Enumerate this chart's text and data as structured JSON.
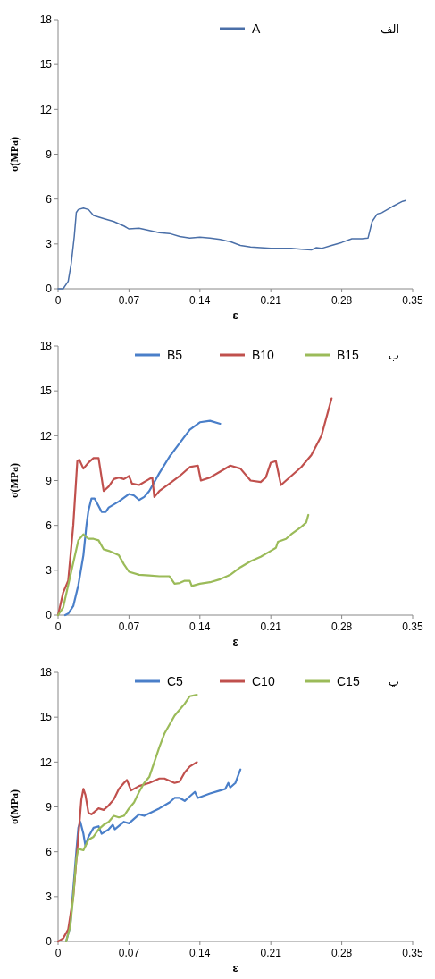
{
  "chart_data": [
    {
      "type": "line",
      "xlabel": "ε",
      "ylabel": "σ(MPa)",
      "annotations": [
        "الف"
      ],
      "xlim": [
        0,
        0.35
      ],
      "ylim": [
        0,
        18
      ],
      "xticks": [
        0,
        0.07,
        0.14,
        0.21,
        0.28,
        0.35
      ],
      "yticks": [
        0,
        3,
        6,
        9,
        12,
        15,
        18
      ],
      "grid": false,
      "legend": "top",
      "marker": "none",
      "line_style": "solid",
      "series": [
        {
          "name": "A",
          "color": "#4a6fa8",
          "x": [
            0,
            0.005,
            0.01,
            0.013,
            0.016,
            0.018,
            0.02,
            0.025,
            0.03,
            0.035,
            0.045,
            0.055,
            0.065,
            0.07,
            0.08,
            0.09,
            0.1,
            0.11,
            0.12,
            0.13,
            0.14,
            0.15,
            0.16,
            0.17,
            0.18,
            0.19,
            0.2,
            0.21,
            0.22,
            0.23,
            0.24,
            0.25,
            0.255,
            0.26,
            0.27,
            0.28,
            0.29,
            0.3,
            0.306,
            0.31,
            0.315,
            0.32,
            0.33,
            0.34,
            0.343
          ],
          "values": [
            0,
            0,
            0.5,
            1.7,
            3.5,
            5.1,
            5.3,
            5.4,
            5.3,
            4.9,
            4.7,
            4.5,
            4.2,
            4.0,
            4.05,
            3.9,
            3.75,
            3.7,
            3.5,
            3.4,
            3.45,
            3.4,
            3.3,
            3.15,
            2.9,
            2.8,
            2.75,
            2.7,
            2.7,
            2.7,
            2.65,
            2.6,
            2.75,
            2.7,
            2.9,
            3.1,
            3.35,
            3.35,
            3.4,
            4.5,
            5.0,
            5.1,
            5.5,
            5.85,
            5.9
          ]
        }
      ]
    },
    {
      "type": "line",
      "xlabel": "ε",
      "ylabel": "σ(MPa)",
      "annotations": [
        "ب"
      ],
      "xlim": [
        0,
        0.35
      ],
      "ylim": [
        0,
        18
      ],
      "xticks": [
        0,
        0.07,
        0.14,
        0.21,
        0.28,
        0.35
      ],
      "yticks": [
        0,
        3,
        6,
        9,
        12,
        15,
        18
      ],
      "grid": false,
      "legend": "top",
      "marker": "none",
      "line_style": "solid",
      "series": [
        {
          "name": "B5",
          "color": "#4a7fc9",
          "x": [
            0.007,
            0.01,
            0.015,
            0.02,
            0.025,
            0.028,
            0.03,
            0.033,
            0.036,
            0.04,
            0.043,
            0.047,
            0.05,
            0.06,
            0.07,
            0.075,
            0.08,
            0.085,
            0.09,
            0.1,
            0.11,
            0.12,
            0.13,
            0.14,
            0.15,
            0.16
          ],
          "values": [
            0,
            0.1,
            0.6,
            2,
            4,
            6,
            7,
            7.8,
            7.8,
            7.3,
            6.9,
            6.9,
            7.2,
            7.6,
            8.1,
            8.0,
            7.7,
            7.9,
            8.3,
            9.5,
            10.6,
            11.5,
            12.4,
            12.9,
            13.0,
            12.8
          ]
        },
        {
          "name": "B10",
          "color": "#c0504d",
          "x": [
            0,
            0.005,
            0.01,
            0.015,
            0.019,
            0.021,
            0.025,
            0.03,
            0.035,
            0.04,
            0.045,
            0.05,
            0.055,
            0.06,
            0.065,
            0.07,
            0.073,
            0.08,
            0.09,
            0.093,
            0.095,
            0.1,
            0.11,
            0.12,
            0.13,
            0.138,
            0.141,
            0.15,
            0.16,
            0.17,
            0.18,
            0.19,
            0.2,
            0.205,
            0.21,
            0.215,
            0.22,
            0.23,
            0.24,
            0.25,
            0.26,
            0.27
          ],
          "values": [
            0,
            1.5,
            2.3,
            6,
            10.3,
            10.4,
            9.8,
            10.2,
            10.5,
            10.5,
            8.3,
            8.6,
            9.1,
            9.2,
            9.1,
            9.3,
            8.8,
            8.7,
            9.1,
            9.2,
            7.9,
            8.3,
            8.8,
            9.3,
            9.9,
            10.0,
            9.0,
            9.2,
            9.6,
            10.0,
            9.8,
            9.0,
            8.9,
            9.2,
            10.2,
            10.3,
            8.7,
            9.3,
            9.9,
            10.7,
            12,
            14.5
          ]
        },
        {
          "name": "B15",
          "color": "#9bbb59",
          "x": [
            0,
            0.005,
            0.01,
            0.015,
            0.02,
            0.025,
            0.03,
            0.035,
            0.04,
            0.045,
            0.05,
            0.06,
            0.065,
            0.07,
            0.08,
            0.09,
            0.1,
            0.11,
            0.115,
            0.12,
            0.125,
            0.13,
            0.132,
            0.14,
            0.15,
            0.16,
            0.17,
            0.18,
            0.19,
            0.2,
            0.21,
            0.215,
            0.217,
            0.225,
            0.23,
            0.24,
            0.245,
            0.247
          ],
          "values": [
            0,
            0.5,
            2,
            3.5,
            5,
            5.4,
            5.1,
            5.1,
            5.0,
            4.4,
            4.3,
            4.0,
            3.4,
            2.9,
            2.7,
            2.65,
            2.6,
            2.6,
            2.1,
            2.15,
            2.3,
            2.3,
            1.95,
            2.1,
            2.2,
            2.4,
            2.7,
            3.2,
            3.6,
            3.9,
            4.3,
            4.5,
            4.9,
            5.1,
            5.4,
            5.9,
            6.2,
            6.7
          ]
        }
      ]
    },
    {
      "type": "line",
      "xlabel": "ε",
      "ylabel": "σ(MPa)",
      "annotations": [
        "پ"
      ],
      "xlim": [
        0,
        0.35
      ],
      "ylim": [
        0,
        18
      ],
      "xticks": [
        0,
        0.07,
        0.14,
        0.21,
        0.28,
        0.35
      ],
      "yticks": [
        0,
        3,
        6,
        9,
        12,
        15,
        18
      ],
      "grid": false,
      "legend": "top",
      "marker": "none",
      "line_style": "solid",
      "series": [
        {
          "name": "C5",
          "color": "#4a7fc9",
          "x": [
            0.008,
            0.012,
            0.015,
            0.018,
            0.02,
            0.022,
            0.025,
            0.027,
            0.03,
            0.035,
            0.04,
            0.043,
            0.05,
            0.054,
            0.056,
            0.065,
            0.07,
            0.08,
            0.085,
            0.1,
            0.11,
            0.115,
            0.12,
            0.125,
            0.13,
            0.135,
            0.138,
            0.15,
            0.16,
            0.165,
            0.168,
            0.17,
            0.175,
            0.18
          ],
          "values": [
            0,
            1,
            3.5,
            6,
            7.6,
            8.0,
            7.2,
            6.4,
            7.0,
            7.6,
            7.7,
            7.2,
            7.5,
            7.8,
            7.5,
            8.0,
            7.9,
            8.5,
            8.4,
            8.9,
            9.3,
            9.6,
            9.6,
            9.4,
            9.7,
            10.0,
            9.6,
            9.9,
            10.1,
            10.2,
            10.6,
            10.3,
            10.6,
            11.5
          ]
        },
        {
          "name": "C10",
          "color": "#c0504d",
          "x": [
            0,
            0.005,
            0.01,
            0.015,
            0.02,
            0.023,
            0.025,
            0.027,
            0.03,
            0.033,
            0.04,
            0.045,
            0.05,
            0.055,
            0.06,
            0.065,
            0.068,
            0.072,
            0.08,
            0.09,
            0.1,
            0.105,
            0.115,
            0.12,
            0.125,
            0.13,
            0.137
          ],
          "values": [
            0,
            0.2,
            0.8,
            3,
            7,
            9.5,
            10.2,
            9.8,
            8.6,
            8.5,
            8.9,
            8.8,
            9.1,
            9.5,
            10.2,
            10.6,
            10.8,
            10.1,
            10.4,
            10.6,
            10.9,
            10.9,
            10.6,
            10.7,
            11.3,
            11.7,
            12.0
          ]
        },
        {
          "name": "C15",
          "color": "#9bbb59",
          "x": [
            0.008,
            0.012,
            0.015,
            0.018,
            0.02,
            0.025,
            0.03,
            0.035,
            0.04,
            0.045,
            0.05,
            0.055,
            0.06,
            0.065,
            0.07,
            0.075,
            0.08,
            0.085,
            0.09,
            0.095,
            0.1,
            0.105,
            0.11,
            0.115,
            0.12,
            0.125,
            0.13,
            0.137
          ],
          "values": [
            0,
            1,
            3,
            5.5,
            6.2,
            6.1,
            6.8,
            7.0,
            7.5,
            7.8,
            8.0,
            8.4,
            8.3,
            8.4,
            8.9,
            9.3,
            10.0,
            10.6,
            11.0,
            12.0,
            13.0,
            13.9,
            14.5,
            15.1,
            15.5,
            15.9,
            16.4,
            16.5
          ]
        }
      ]
    }
  ]
}
